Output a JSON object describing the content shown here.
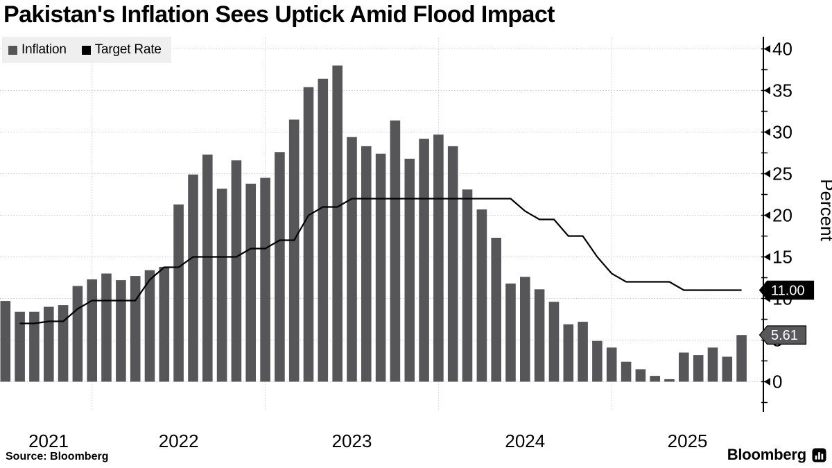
{
  "title": "Pakistan's Inflation Sees Uptick Amid Flood Impact",
  "legend": {
    "items": [
      {
        "label": "Inflation"
      },
      {
        "label": "Target Rate"
      }
    ]
  },
  "source": "Source: Bloomberg",
  "brand": {
    "logo_text": "Bloomberg"
  },
  "colors": {
    "bar": "#565658",
    "line": "#000000",
    "grid": "#c8c8c8",
    "legend_bg": "#efefef",
    "callout_target_bg": "#000000",
    "callout_inflation_bg": "#58585a",
    "text": "#000000",
    "background": "#ffffff"
  },
  "callouts": [
    {
      "series": "target-rate",
      "label": "11.00",
      "value": 11.0,
      "bg": "#000000",
      "text_color": "#ffffff"
    },
    {
      "series": "inflation",
      "label": "5.61",
      "value": 5.61,
      "bg": "#58585a",
      "text_color": "#ffffff"
    }
  ],
  "chart_data": {
    "type": "bar+line",
    "title": "Pakistan's Inflation Sees Uptick Amid Flood Impact",
    "ylabel": "Percent",
    "xlabel": "",
    "ylim": [
      -2.5,
      42.5
    ],
    "yticks": [
      0,
      5,
      10,
      15,
      20,
      25,
      30,
      35,
      40
    ],
    "y_minor_step": 2.5,
    "grid": "dotted",
    "legend_position": "top-left",
    "x_year_labels": [
      "2021",
      "2022",
      "2023",
      "2024",
      "2025"
    ],
    "x": [
      "2021-06",
      "2021-07",
      "2021-08",
      "2021-09",
      "2021-10",
      "2021-11",
      "2021-12",
      "2022-01",
      "2022-02",
      "2022-03",
      "2022-04",
      "2022-05",
      "2022-06",
      "2022-07",
      "2022-08",
      "2022-09",
      "2022-10",
      "2022-11",
      "2022-12",
      "2023-01",
      "2023-02",
      "2023-03",
      "2023-04",
      "2023-05",
      "2023-06",
      "2023-07",
      "2023-08",
      "2023-09",
      "2023-10",
      "2023-11",
      "2023-12",
      "2024-01",
      "2024-02",
      "2024-03",
      "2024-04",
      "2024-05",
      "2024-06",
      "2024-07",
      "2024-08",
      "2024-09",
      "2024-10",
      "2024-11",
      "2024-12",
      "2025-01",
      "2025-02",
      "2025-03",
      "2025-04",
      "2025-05",
      "2025-06",
      "2025-07",
      "2025-08",
      "2025-09"
    ],
    "series": [
      {
        "name": "Inflation",
        "type": "bar",
        "color": "#565658",
        "values": [
          9.7,
          8.4,
          8.4,
          9.0,
          9.2,
          11.5,
          12.3,
          13.0,
          12.2,
          12.7,
          13.4,
          13.8,
          21.3,
          24.9,
          27.3,
          23.2,
          26.6,
          23.8,
          24.5,
          27.6,
          31.5,
          35.4,
          36.4,
          38.0,
          29.4,
          28.3,
          27.4,
          31.4,
          26.8,
          29.2,
          29.7,
          28.3,
          23.1,
          20.7,
          17.3,
          11.8,
          12.6,
          11.1,
          9.6,
          6.9,
          7.2,
          4.9,
          4.1,
          2.4,
          1.5,
          0.7,
          0.3,
          3.5,
          3.2,
          4.1,
          3.0,
          5.61
        ]
      },
      {
        "name": "Target Rate",
        "type": "line",
        "color": "#000000",
        "values": [
          null,
          7.0,
          7.0,
          7.25,
          7.25,
          8.75,
          9.75,
          9.75,
          9.75,
          9.75,
          12.25,
          13.75,
          13.75,
          15.0,
          15.0,
          15.0,
          15.0,
          16.0,
          16.0,
          17.0,
          17.0,
          20.0,
          21.0,
          21.0,
          22.0,
          22.0,
          22.0,
          22.0,
          22.0,
          22.0,
          22.0,
          22.0,
          22.0,
          22.0,
          22.0,
          22.0,
          20.5,
          19.5,
          19.5,
          17.5,
          17.5,
          15.0,
          13.0,
          12.0,
          12.0,
          12.0,
          12.0,
          11.0,
          11.0,
          11.0,
          11.0,
          11.0
        ]
      }
    ],
    "last_value_labels": {
      "Target Rate": "11.00",
      "Inflation": "5.61"
    }
  }
}
